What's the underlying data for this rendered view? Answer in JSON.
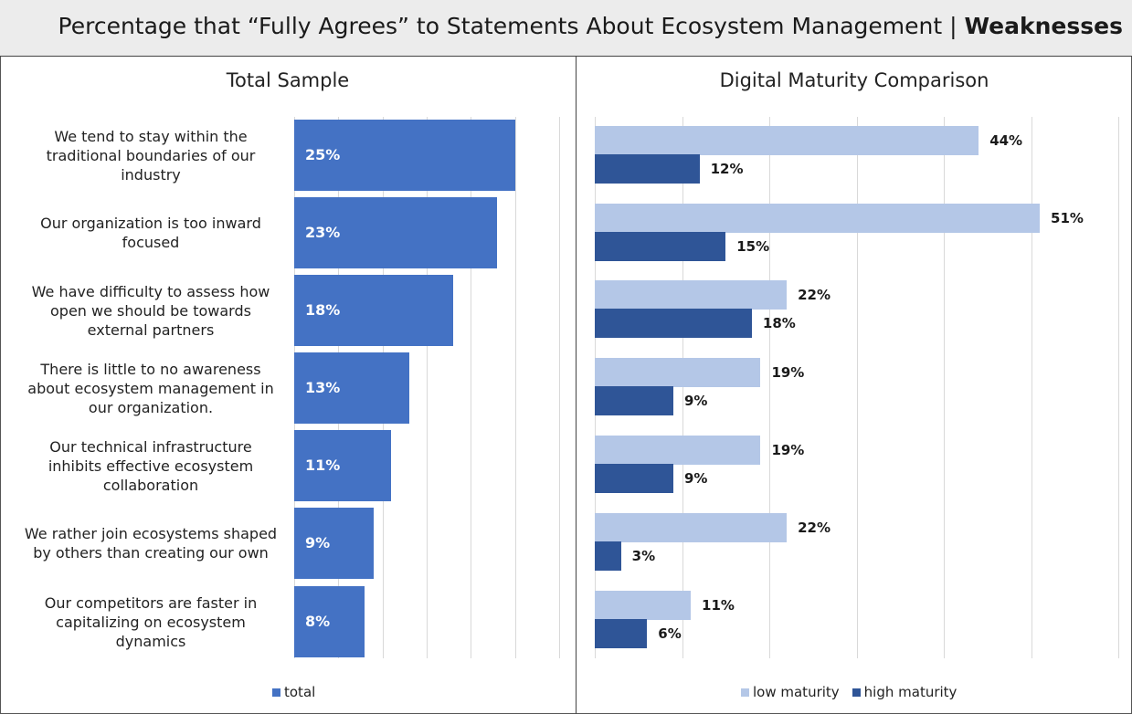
{
  "header": {
    "title_main": "Percentage that “Fully Agrees” to Statements About Ecosystem Management | ",
    "title_bold": "Weaknesses"
  },
  "colors": {
    "total": "#4472c4",
    "low": "#b4c7e7",
    "high": "#2f5597"
  },
  "chart_data": [
    {
      "type": "bar",
      "orientation": "horizontal",
      "title": "Total Sample",
      "categories": [
        "We tend to stay within the traditional boundaries of our industry",
        "Our organization is too inward focused",
        "We have difficulty to assess how open we should be towards external partners",
        "There is little to no awareness about ecosystem management in our organization.",
        "Our technical infrastructure inhibits effective ecosystem collaboration",
        "We rather join ecosystems shaped by others than creating our own",
        "Our competitors are faster in capitalizing on ecosystem dynamics"
      ],
      "series": [
        {
          "name": "total",
          "values": [
            25,
            23,
            18,
            13,
            11,
            9,
            8
          ]
        }
      ],
      "labels": [
        "25%",
        "23%",
        "18%",
        "13%",
        "11%",
        "9%",
        "8%"
      ],
      "xlim": [
        0,
        30
      ],
      "grid": true,
      "legend": "bottom"
    },
    {
      "type": "bar",
      "orientation": "horizontal",
      "title": "Digital Maturity Comparison",
      "series": [
        {
          "name": "low maturity",
          "values": [
            44,
            51,
            22,
            19,
            19,
            22,
            11
          ],
          "labels": [
            "44%",
            "51%",
            "22%",
            "19%",
            "19%",
            "22%",
            "11%"
          ]
        },
        {
          "name": "high maturity",
          "values": [
            12,
            15,
            18,
            9,
            9,
            3,
            6
          ],
          "labels": [
            "12%",
            "15%",
            "18%",
            "9%",
            "9%",
            "3%",
            "6%"
          ]
        }
      ],
      "xlim": [
        0,
        60
      ],
      "grid": true,
      "legend": "bottom"
    }
  ]
}
